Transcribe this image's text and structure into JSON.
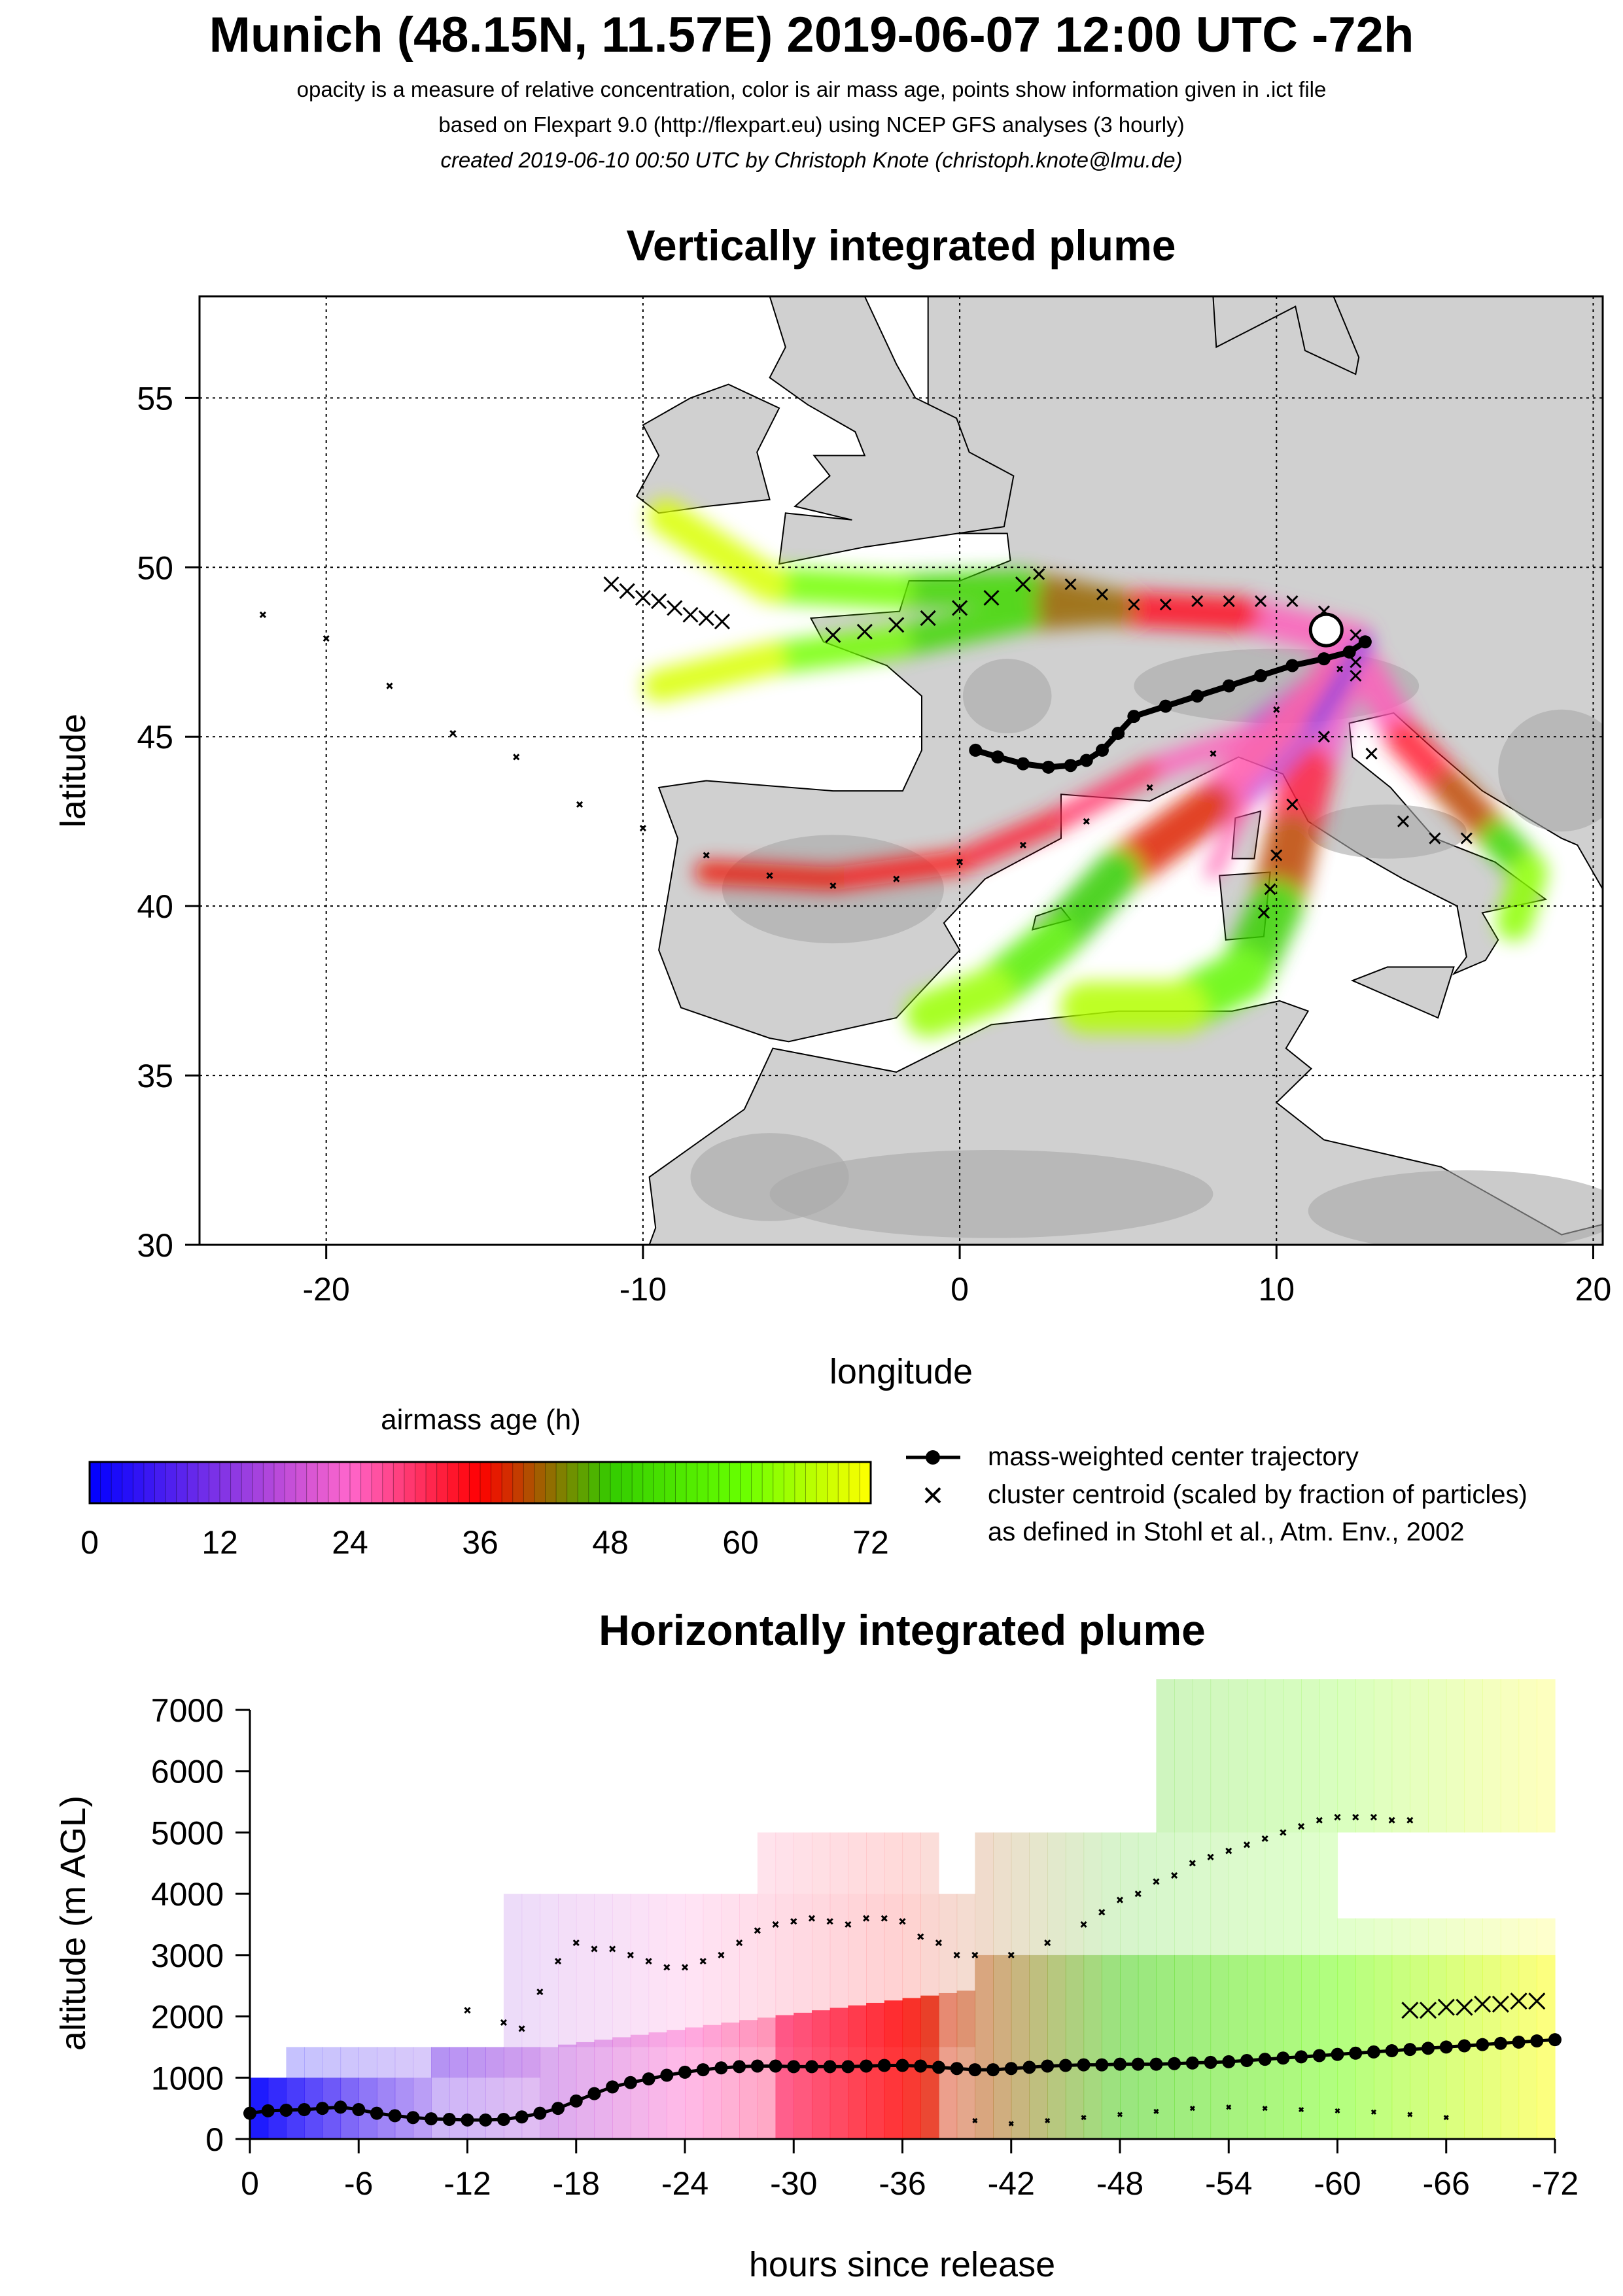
{
  "header": {
    "title": "Munich (48.15N, 11.57E) 2019-06-07 12:00 UTC -72h",
    "line1": "opacity is a measure of relative concentration, color is air mass age, points show information given in .ict file",
    "line2": "based on Flexpart 9.0 (http://flexpart.eu) using NCEP GFS analyses (3 hourly)",
    "line3": "created 2019-06-10 00:50 UTC by Christoph Knote (christoph.knote@lmu.de)"
  },
  "colors": {
    "age_0": "#0000ff",
    "age_24": "#ff66cc",
    "age_36": "#ff0000",
    "age_48": "#33cc00",
    "age_60": "#66ff00",
    "age_72": "#ffff00",
    "land": "#d0d0d0",
    "land_dark": "#a8a8a8"
  },
  "legend": {
    "colorbar_title": "airmass age (h)",
    "colorbar_ticks": [
      "0",
      "12",
      "24",
      "36",
      "48",
      "60",
      "72"
    ],
    "entries": [
      {
        "symbol": "line-dot",
        "text": "mass-weighted center trajectory"
      },
      {
        "symbol": "cross",
        "text": "cluster centroid (scaled by fraction of particles)"
      },
      {
        "symbol": "none",
        "text": "as defined in Stohl et al., Atm. Env., 2002"
      }
    ]
  },
  "chart_data": [
    {
      "type": "scatter",
      "title": "Vertically integrated plume",
      "xlabel": "longitude",
      "ylabel": "latitude",
      "xlim": [
        -24,
        20.3
      ],
      "ylim": [
        30,
        58
      ],
      "xticks": [
        "-20",
        "-10",
        "0",
        "10",
        "20"
      ],
      "yticks": [
        "30",
        "35",
        "40",
        "45",
        "50",
        "55"
      ],
      "grid": true,
      "release_point": {
        "lon": 11.57,
        "lat": 48.15
      },
      "center_trajectory": {
        "lon": [
          12.8,
          12.3,
          11.5,
          10.5,
          9.5,
          8.5,
          7.5,
          6.5,
          5.5,
          5.0,
          4.5,
          4.0,
          3.5,
          2.8,
          2.0,
          1.2,
          0.5
        ],
        "lat": [
          47.8,
          47.5,
          47.3,
          47.1,
          46.8,
          46.5,
          46.2,
          45.9,
          45.6,
          45.1,
          44.6,
          44.3,
          44.15,
          44.1,
          44.2,
          44.4,
          44.6
        ]
      },
      "cluster_centroids": [
        {
          "name": "north",
          "lon": [
            12.5,
            11.5,
            10.5,
            9.5,
            8.5,
            7.5,
            6.5,
            5.5,
            4.5,
            3.5,
            2.5
          ],
          "lat": [
            48.0,
            48.7,
            49.0,
            49.0,
            49.0,
            49.0,
            48.9,
            48.9,
            49.2,
            49.5,
            49.8
          ]
        },
        {
          "name": "west",
          "lon": [
            2.0,
            1.0,
            0.0,
            -1.0,
            -2.0,
            -3.0,
            -4.0
          ],
          "lat": [
            49.5,
            49.1,
            48.8,
            48.5,
            48.3,
            48.1,
            48.0
          ]
        },
        {
          "name": "far west",
          "lon": [
            -7.5,
            -8.0,
            -8.5,
            -9.0,
            -9.5,
            -10.0,
            -10.5,
            -11.0
          ],
          "lat": [
            48.4,
            48.5,
            48.6,
            48.8,
            49.0,
            49.1,
            49.3,
            49.5
          ]
        },
        {
          "name": "iberia",
          "lon": [
            12.0,
            10.0,
            8.0,
            6.0,
            4.0,
            2.0,
            0.0,
            -2.0,
            -4.0,
            -6.0,
            -8.0,
            -10.0,
            -12.0,
            -14.0,
            -16.0,
            -18.0,
            -20.0,
            -22.0
          ],
          "lat": [
            47.0,
            45.8,
            44.5,
            43.5,
            42.5,
            41.8,
            41.3,
            40.8,
            40.6,
            40.9,
            41.5,
            42.3,
            43.0,
            44.4,
            45.1,
            46.5,
            47.9,
            48.6
          ]
        },
        {
          "name": "south",
          "lon": [
            12.5,
            11.5,
            10.5,
            10.0,
            9.8,
            9.6
          ],
          "lat": [
            47.2,
            45.0,
            43.0,
            41.5,
            40.5,
            39.8
          ]
        },
        {
          "name": "adriatic",
          "lon": [
            12.5,
            13.0,
            14.0,
            15.0,
            16.0
          ],
          "lat": [
            46.8,
            44.5,
            42.5,
            42.0,
            42.0
          ]
        }
      ]
    },
    {
      "type": "scatter",
      "title": "Horizontally integrated plume",
      "xlabel": "hours since release",
      "ylabel": "altitude (m AGL)",
      "xlim": [
        0,
        -72
      ],
      "ylim": [
        0,
        7000
      ],
      "xticks": [
        "0",
        "-6",
        "-12",
        "-18",
        "-24",
        "-30",
        "-36",
        "-42",
        "-48",
        "-54",
        "-60",
        "-66",
        "-72"
      ],
      "yticks": [
        "0",
        "1000",
        "2000",
        "3000",
        "4000",
        "5000",
        "6000",
        "7000"
      ],
      "center_trajectory": {
        "hours": [
          0,
          -1,
          -2,
          -3,
          -4,
          -5,
          -6,
          -7,
          -8,
          -9,
          -10,
          -11,
          -12,
          -13,
          -14,
          -15,
          -16,
          -17,
          -18,
          -19,
          -20,
          -21,
          -22,
          -23,
          -24,
          -25,
          -26,
          -27,
          -28,
          -29,
          -30,
          -31,
          -32,
          -33,
          -34,
          -35,
          -36,
          -37,
          -38,
          -39,
          -40,
          -41,
          -42,
          -43,
          -44,
          -45,
          -46,
          -47,
          -48,
          -49,
          -50,
          -51,
          -52,
          -53,
          -54,
          -55,
          -56,
          -57,
          -58,
          -59,
          -60,
          -61,
          -62,
          -63,
          -64,
          -65,
          -66,
          -67,
          -68,
          -69,
          -70,
          -71,
          -72
        ],
        "altitude": [
          420,
          460,
          470,
          480,
          500,
          520,
          480,
          420,
          380,
          350,
          330,
          320,
          310,
          310,
          320,
          360,
          420,
          500,
          620,
          740,
          850,
          920,
          980,
          1040,
          1090,
          1130,
          1160,
          1180,
          1190,
          1190,
          1180,
          1180,
          1180,
          1180,
          1190,
          1200,
          1200,
          1190,
          1170,
          1150,
          1130,
          1130,
          1150,
          1170,
          1190,
          1200,
          1210,
          1210,
          1220,
          1220,
          1220,
          1230,
          1240,
          1250,
          1260,
          1280,
          1300,
          1320,
          1340,
          1360,
          1380,
          1400,
          1420,
          1440,
          1460,
          1480,
          1500,
          1520,
          1540,
          1560,
          1580,
          1600,
          1620
        ]
      },
      "cluster_upper": {
        "hours": [
          -12,
          -14,
          -15,
          -16,
          -17,
          -18,
          -19,
          -20,
          -21,
          -22,
          -23,
          -24,
          -25,
          -26,
          -27,
          -28,
          -29,
          -30,
          -31,
          -32,
          -33,
          -34,
          -35,
          -36,
          -37,
          -38,
          -39,
          -40,
          -42,
          -44,
          -46,
          -47,
          -48,
          -49,
          -50,
          -51,
          -52,
          -53,
          -54,
          -55,
          -56,
          -57,
          -58,
          -59,
          -60,
          -61,
          -62,
          -63,
          -64
        ],
        "altitude": [
          2100,
          1900,
          1800,
          2400,
          2900,
          3200,
          3100,
          3100,
          3000,
          2900,
          2800,
          2800,
          2900,
          3000,
          3200,
          3400,
          3500,
          3550,
          3600,
          3550,
          3500,
          3600,
          3600,
          3550,
          3300,
          3200,
          3000,
          3000,
          3000,
          3200,
          3500,
          3700,
          3900,
          4000,
          4200,
          4300,
          4500,
          4600,
          4700,
          4800,
          4900,
          5000,
          5100,
          5200,
          5250,
          5250,
          5250,
          5200,
          5200
        ]
      },
      "cluster_lower": {
        "hours": [
          -40,
          -42,
          -44,
          -46,
          -48,
          -50,
          -52,
          -54,
          -56,
          -58,
          -60,
          -62,
          -64,
          -66
        ],
        "altitude": [
          300,
          250,
          300,
          350,
          400,
          450,
          500,
          520,
          500,
          480,
          460,
          440,
          400,
          350
        ]
      },
      "cluster_crosses": {
        "hours": [
          -64,
          -65,
          -66,
          -67,
          -68,
          -69,
          -70,
          -71
        ],
        "altitude": [
          2100,
          2100,
          2150,
          2150,
          2200,
          2200,
          2250,
          2250
        ]
      }
    }
  ]
}
